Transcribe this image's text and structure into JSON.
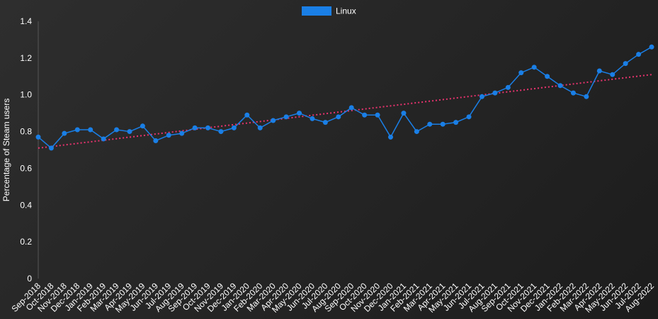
{
  "colors": {
    "series": "#1a7fe6",
    "trend": "#e8336e",
    "text": "#ffffff",
    "axis_line": "#555555"
  },
  "chart_data": {
    "type": "line",
    "title": "",
    "xlabel": "",
    "ylabel": "Percentage of Steam users",
    "ylim": [
      0,
      1.4
    ],
    "yticks": [
      "0",
      "0.2",
      "0.4",
      "0.6",
      "0.8",
      "1.0",
      "1.2",
      "1.4"
    ],
    "grid": false,
    "legend_position": "top-center",
    "categories": [
      "Sep-2018",
      "Oct-2018",
      "Nov-2018",
      "Dec-2018",
      "Jan-2019",
      "Feb-2019",
      "Mar-2019",
      "Apr-2019",
      "May-2019",
      "Jun-2019",
      "Jul-2019",
      "Aug-2019",
      "Sep-2019",
      "Oct-2019",
      "Nov-2019",
      "Dec-2019",
      "Jan-2020",
      "Feb-2020",
      "Mar-2020",
      "Apr-2020",
      "May-2020",
      "Jun-2020",
      "Jul-2020",
      "Aug-2020",
      "Sep-2020",
      "Oct-2020",
      "Nov-2020",
      "Dec-2020",
      "Jan-2021",
      "Feb-2021",
      "Mar-2021",
      "Apr-2021",
      "May-2021",
      "Jun-2021",
      "Jul-2021",
      "Aug-2021",
      "Sep-2021",
      "Oct-2021",
      "Nov-2021",
      "Dec-2021",
      "Jan-2022",
      "Feb-2022",
      "Mar-2022",
      "Apr-2022",
      "May-2022",
      "Jun-2022",
      "Jul-2022",
      "Aug-2022"
    ],
    "series": [
      {
        "name": "Linux",
        "values": [
          0.77,
          0.71,
          0.79,
          0.81,
          0.81,
          0.76,
          0.81,
          0.8,
          0.83,
          0.75,
          0.78,
          0.79,
          0.82,
          0.82,
          0.8,
          0.82,
          0.89,
          0.82,
          0.86,
          0.88,
          0.9,
          0.87,
          0.85,
          0.88,
          0.93,
          0.89,
          0.89,
          0.77,
          0.9,
          0.8,
          0.84,
          0.84,
          0.85,
          0.88,
          0.99,
          1.01,
          1.04,
          1.12,
          1.15,
          1.1,
          1.05,
          1.01,
          0.99,
          1.13,
          1.11,
          1.17,
          1.22,
          1.26
        ]
      }
    ],
    "trendline": {
      "style": "dotted",
      "start": 0.71,
      "end": 1.11
    }
  }
}
